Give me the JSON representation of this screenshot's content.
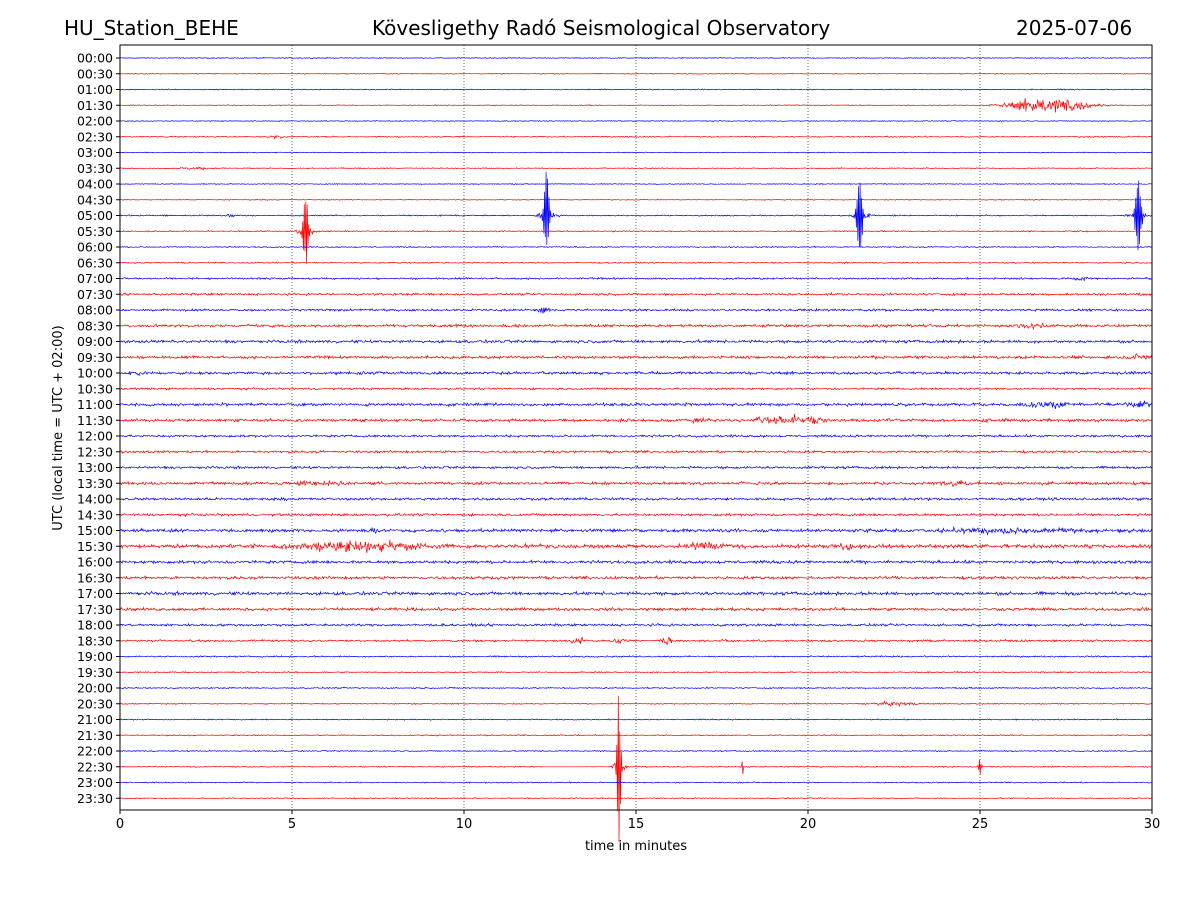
{
  "header": {
    "station": "HU_Station_BEHE",
    "title": "Kövesligethy Radó Seismological Observatory",
    "date": "2025-07-06"
  },
  "chart_data": {
    "type": "line",
    "title": "Kövesligethy Radó Seismological Observatory",
    "xlabel": "time in minutes",
    "ylabel": "UTC (local time = UTC + 02:00)",
    "xlim": [
      0,
      30
    ],
    "x_ticks": [
      "0",
      "5",
      "10",
      "15",
      "20",
      "25",
      "30"
    ],
    "grid": "vertical dotted lines at 5-minute intervals",
    "colors": {
      "even_traces": "#0000ff",
      "odd_traces": "#ff0000"
    },
    "rows": [
      "00:00",
      "00:30",
      "01:00",
      "01:30",
      "02:00",
      "02:30",
      "03:00",
      "03:30",
      "04:00",
      "04:30",
      "05:00",
      "05:30",
      "06:00",
      "06:30",
      "07:00",
      "07:30",
      "08:00",
      "08:30",
      "09:00",
      "09:30",
      "10:00",
      "10:30",
      "11:00",
      "11:30",
      "12:00",
      "12:30",
      "13:00",
      "13:30",
      "14:00",
      "14:30",
      "15:00",
      "15:30",
      "16:00",
      "16:30",
      "17:00",
      "17:30",
      "18:00",
      "18:30",
      "19:00",
      "19:30",
      "20:00",
      "20:30",
      "21:00",
      "21:30",
      "22:00",
      "22:30",
      "23:00",
      "23:30"
    ],
    "noise_level": [
      0.6,
      0.6,
      0.7,
      0.6,
      0.6,
      0.8,
      0.6,
      0.7,
      0.6,
      0.6,
      0.9,
      0.8,
      0.8,
      0.8,
      1.2,
      1.5,
      1.5,
      1.9,
      2.0,
      1.9,
      2.0,
      1.3,
      2.0,
      2.0,
      1.6,
      1.6,
      1.7,
      2.0,
      1.8,
      1.7,
      2.2,
      2.6,
      2.1,
      2.0,
      2.3,
      2.1,
      1.7,
      1.4,
      1.0,
      0.9,
      0.9,
      0.8,
      0.8,
      0.8,
      0.8,
      0.7,
      0.8,
      0.7
    ],
    "events": [
      {
        "row": "01:30",
        "minute": 27.0,
        "amplitude": 13,
        "duration_min": 2.2,
        "kind": "earthquake"
      },
      {
        "row": "02:30",
        "minute": 4.5,
        "amplitude": 3,
        "duration_min": 0.6,
        "kind": "burst"
      },
      {
        "row": "03:30",
        "minute": 2.2,
        "amplitude": 2.5,
        "duration_min": 0.8,
        "kind": "burst"
      },
      {
        "row": "05:00",
        "minute": 12.4,
        "amplitude": 42,
        "duration_min": 0.5,
        "kind": "spike"
      },
      {
        "row": "05:00",
        "minute": 21.5,
        "amplitude": 45,
        "duration_min": 0.5,
        "kind": "spike"
      },
      {
        "row": "05:00",
        "minute": 29.6,
        "amplitude": 44,
        "duration_min": 0.5,
        "kind": "spike"
      },
      {
        "row": "05:00",
        "minute": 3.2,
        "amplitude": 3,
        "duration_min": 0.2,
        "kind": "burst"
      },
      {
        "row": "05:30",
        "minute": 5.4,
        "amplitude": 38,
        "duration_min": 0.5,
        "kind": "spike"
      },
      {
        "row": "07:00",
        "minute": 27.9,
        "amplitude": 4,
        "duration_min": 0.5,
        "kind": "burst"
      },
      {
        "row": "08:00",
        "minute": 12.3,
        "amplitude": 5,
        "duration_min": 0.3,
        "kind": "burst"
      },
      {
        "row": "08:30",
        "minute": 26.5,
        "amplitude": 4,
        "duration_min": 1.2,
        "kind": "burst"
      },
      {
        "row": "09:30",
        "minute": 29.7,
        "amplitude": 5,
        "duration_min": 0.6,
        "kind": "burst"
      },
      {
        "row": "10:00",
        "minute": 0.4,
        "amplitude": 4,
        "duration_min": 0.6,
        "kind": "burst"
      },
      {
        "row": "11:00",
        "minute": 27.0,
        "amplitude": 6,
        "duration_min": 1.4,
        "kind": "burst"
      },
      {
        "row": "11:00",
        "minute": 29.6,
        "amplitude": 6,
        "duration_min": 0.8,
        "kind": "burst"
      },
      {
        "row": "11:30",
        "minute": 16.9,
        "amplitude": 5,
        "duration_min": 0.5,
        "kind": "burst"
      },
      {
        "row": "11:30",
        "minute": 19.5,
        "amplitude": 7,
        "duration_min": 2.5,
        "kind": "burst"
      },
      {
        "row": "11:30",
        "minute": 25.2,
        "amplitude": 5,
        "duration_min": 0.3,
        "kind": "burst"
      },
      {
        "row": "13:30",
        "minute": 6.0,
        "amplitude": 5,
        "duration_min": 1.5,
        "kind": "burst"
      },
      {
        "row": "13:30",
        "minute": 24.2,
        "amplitude": 4,
        "duration_min": 1.2,
        "kind": "burst"
      },
      {
        "row": "15:00",
        "minute": 7.4,
        "amplitude": 7,
        "duration_min": 0.2,
        "kind": "burst"
      },
      {
        "row": "15:00",
        "minute": 26.0,
        "amplitude": 4,
        "duration_min": 6.0,
        "kind": "burst"
      },
      {
        "row": "15:30",
        "minute": 7.0,
        "amplitude": 8,
        "duration_min": 4.0,
        "kind": "burst"
      },
      {
        "row": "15:30",
        "minute": 17.0,
        "amplitude": 5,
        "duration_min": 1.5,
        "kind": "burst"
      },
      {
        "row": "15:30",
        "minute": 21.0,
        "amplitude": 5,
        "duration_min": 1.2,
        "kind": "burst"
      },
      {
        "row": "18:30",
        "minute": 13.3,
        "amplitude": 5,
        "duration_min": 0.5,
        "kind": "burst"
      },
      {
        "row": "18:30",
        "minute": 14.5,
        "amplitude": 4,
        "duration_min": 0.5,
        "kind": "burst"
      },
      {
        "row": "18:30",
        "minute": 15.9,
        "amplitude": 5,
        "duration_min": 0.4,
        "kind": "burst"
      },
      {
        "row": "18:30",
        "minute": 17.6,
        "amplitude": 6,
        "duration_min": 0.2,
        "kind": "burst"
      },
      {
        "row": "20:30",
        "minute": 22.5,
        "amplitude": 3,
        "duration_min": 1.5,
        "kind": "burst"
      },
      {
        "row": "22:30",
        "minute": 14.5,
        "amplitude": 90,
        "duration_min": 0.3,
        "kind": "spike"
      },
      {
        "row": "22:30",
        "minute": 18.1,
        "amplitude": 10,
        "duration_min": 0.1,
        "kind": "spike"
      },
      {
        "row": "22:30",
        "minute": 25.0,
        "amplitude": 8,
        "duration_min": 0.2,
        "kind": "spike"
      }
    ],
    "flat_segments": [
      {
        "row": "22:30",
        "from": 12.3,
        "to": 14.4
      }
    ]
  }
}
